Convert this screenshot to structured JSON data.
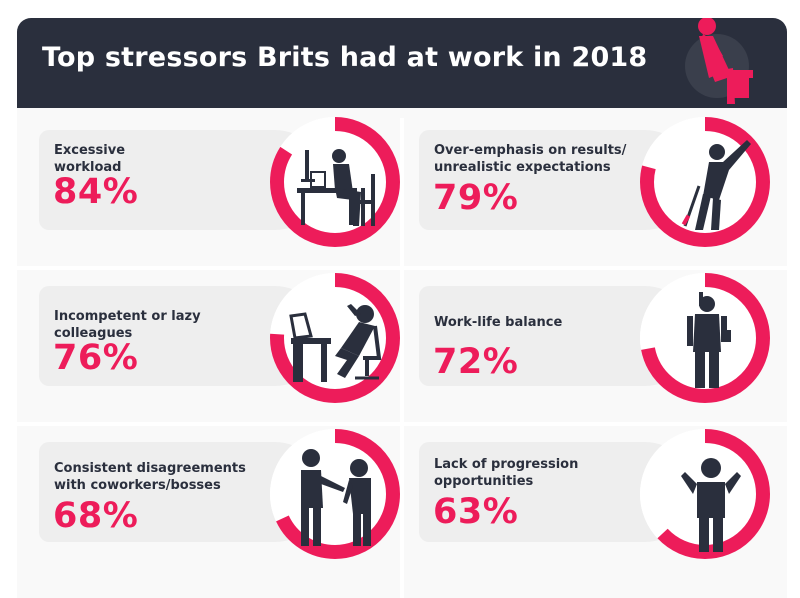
{
  "title": "Top stressors Brits had at work in 2018",
  "colors": {
    "accent": "#ed1c5a",
    "dark": "#2a2f3d",
    "ring_track": "#ffffff",
    "pill": "#eeeeee"
  },
  "chart_data": {
    "type": "bar",
    "title": "Top stressors Brits had at work in 2018",
    "categories": [
      "Excessive workload",
      "Over-emphasis on results/ unrealistic expectations",
      "Incompetent or lazy colleagues",
      "Work-life balance",
      "Consistent disagreements with coworkers/bosses",
      "Lack of progression opportunities"
    ],
    "values": [
      84,
      79,
      76,
      72,
      68,
      63
    ],
    "ylim": [
      0,
      100
    ]
  },
  "items": [
    {
      "label_lines": [
        "Excessive",
        "workload"
      ],
      "value_text": "84%",
      "value": 84,
      "icon": "desk-worker-icon"
    },
    {
      "label_lines": [
        "Over-emphasis on results/",
        "unrealistic expectations"
      ],
      "value_text": "79%",
      "value": 79,
      "icon": "stabbed-in-back-icon"
    },
    {
      "label_lines": [
        "Incompetent or lazy",
        "colleagues"
      ],
      "value_text": "76%",
      "value": 76,
      "icon": "lazy-colleague-icon"
    },
    {
      "label_lines": [
        "Work-life balance"
      ],
      "value_text": "72%",
      "value": 72,
      "icon": "phone-call-icon"
    },
    {
      "label_lines": [
        "Consistent disagreements",
        "with coworkers/bosses"
      ],
      "value_text": "68%",
      "value": 68,
      "icon": "argument-icon"
    },
    {
      "label_lines": [
        "Lack of progression",
        "opportunities"
      ],
      "value_text": "63%",
      "value": 63,
      "icon": "shrug-icon"
    }
  ]
}
